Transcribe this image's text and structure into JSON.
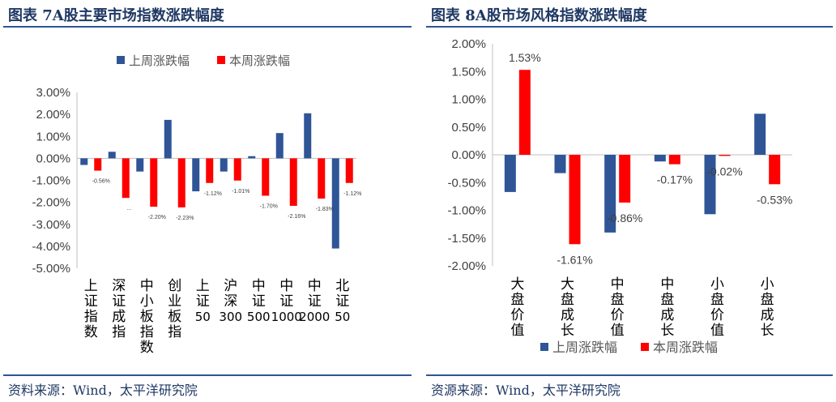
{
  "left": {
    "title": "图表 7A股主要市场指数涨跌幅度",
    "source": "资料来源：Wind，太平洋研究院",
    "chart_data": {
      "type": "bar",
      "categories": [
        "上证指数",
        "深证成指",
        "中小板指数",
        "创业板指",
        "上证50",
        "沪深300",
        "中证500",
        "中证1000",
        "中证2000",
        "北证50"
      ],
      "series": [
        {
          "name": "上周涨跌幅",
          "color": "#2f5597",
          "values": [
            -0.3,
            0.3,
            -0.6,
            1.75,
            -1.5,
            -0.6,
            0.1,
            1.15,
            2.05,
            -4.1
          ]
        },
        {
          "name": "本周涨跌幅",
          "color": "#ff0000",
          "values": [
            -0.56,
            -1.8,
            -2.2,
            -2.23,
            -1.12,
            -1.01,
            -1.7,
            -2.16,
            -1.83,
            -1.12
          ]
        }
      ],
      "data_labels": [
        "-0.56%",
        "...",
        "-2.20%",
        "-2.23%",
        "-1.12%",
        "-1.01%",
        "-1.70%",
        "-2.16%",
        "-1.83%",
        "-1.12%"
      ],
      "y_ticks": [
        "3.00%",
        "2.00%",
        "1.00%",
        "0.00%",
        "-1.00%",
        "-2.00%",
        "-3.00%",
        "-4.00%",
        "-5.00%"
      ],
      "ylim": [
        -5,
        3
      ],
      "legend_position": "top"
    }
  },
  "right": {
    "title": "图表 8A股市场风格指数涨跌幅度",
    "source": "资源来源：Wind，太平洋研究院",
    "chart_data": {
      "type": "bar",
      "categories": [
        "大盘价值",
        "大盘成长",
        "中盘价值",
        "中盘成长",
        "小盘价值",
        "小盘成长"
      ],
      "series": [
        {
          "name": "上周涨跌幅",
          "color": "#2f5597",
          "values": [
            -0.67,
            -0.33,
            -1.4,
            -0.12,
            -1.07,
            0.74
          ]
        },
        {
          "name": "本周涨跌幅",
          "color": "#ff0000",
          "values": [
            1.53,
            -1.61,
            -0.86,
            -0.17,
            -0.02,
            -0.53
          ]
        }
      ],
      "data_labels": [
        "1.53%",
        "-1.61%",
        "-0.86%",
        "-0.17%",
        "-0.02%",
        "-0.53%"
      ],
      "y_ticks": [
        "2.00%",
        "1.50%",
        "1.00%",
        "0.50%",
        "0.00%",
        "-0.50%",
        "-1.00%",
        "-1.50%",
        "-2.00%"
      ],
      "ylim": [
        -2,
        2
      ],
      "legend_position": "bottom"
    }
  }
}
